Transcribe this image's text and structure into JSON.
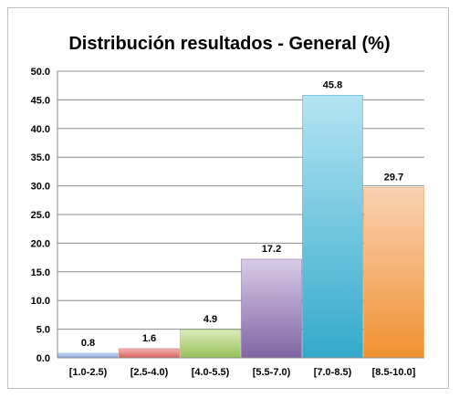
{
  "chart_data": {
    "type": "bar",
    "title": "Distribución resultados - General (%)",
    "xlabel": "",
    "ylabel": "",
    "categories": [
      "[1.0-2.5)",
      "[2.5-4.0)",
      "[4.0-5.5)",
      "[5.5-7.0)",
      "[7.0-8.5)",
      "[8.5-10.0]"
    ],
    "values": [
      0.8,
      1.6,
      4.9,
      17.2,
      45.8,
      29.7
    ],
    "data_labels": [
      "0.8",
      "1.6",
      "4.9",
      "17.2",
      "45.8",
      "29.7"
    ],
    "ylim": [
      0,
      50
    ],
    "yticks": [
      "0.0",
      "5.0",
      "10.0",
      "15.0",
      "20.0",
      "25.0",
      "30.0",
      "35.0",
      "40.0",
      "45.0",
      "50.0"
    ],
    "grid": true,
    "legend": "none",
    "bar_colors": [
      [
        "#c6d6f0",
        "#8aa8db"
      ],
      [
        "#f0b8b6",
        "#d75f5a"
      ],
      [
        "#dcecbc",
        "#95c257"
      ],
      [
        "#d9cce8",
        "#8064a2"
      ],
      [
        "#b4e4f3",
        "#33aacb"
      ],
      [
        "#fad1b3",
        "#f0912f"
      ]
    ]
  }
}
